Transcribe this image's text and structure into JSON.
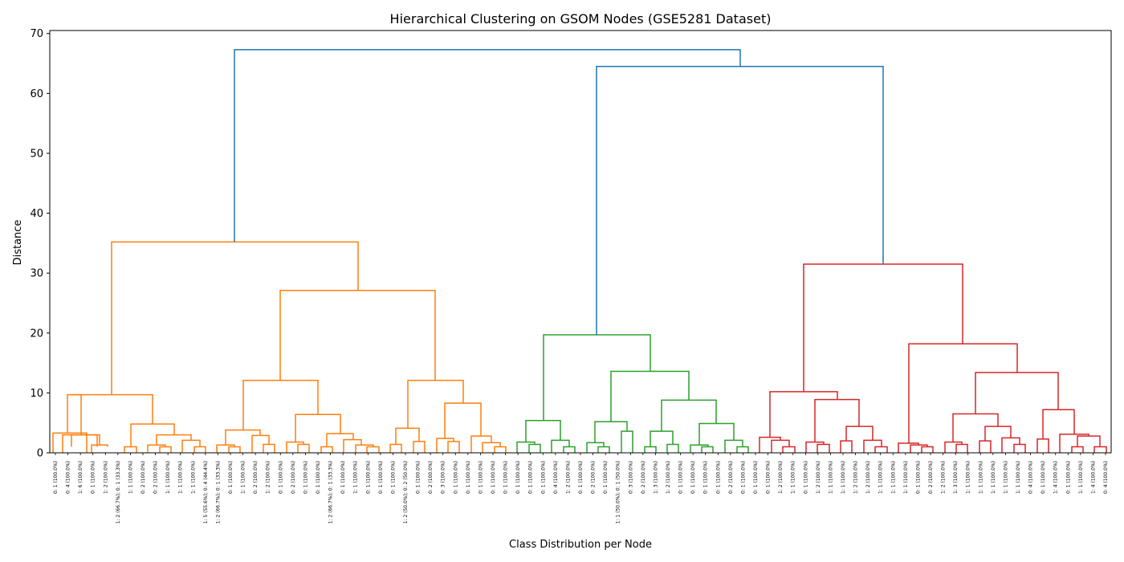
{
  "chart_data": {
    "type": "dendrogram",
    "title": "Hierarchical Clustering on GSOM Nodes (GSE5281 Dataset)",
    "xlabel": "Class Distribution per Node",
    "ylabel": "Distance",
    "ylim": [
      0,
      70.5
    ],
    "yticks": [
      0,
      10,
      20,
      30,
      40,
      50,
      60,
      70
    ],
    "grid": false,
    "leaf_labels": [
      "0: 1 (100.0%)",
      "0: 4 (100.0%)",
      "1: 6 (100.0%)",
      "0: 1 (100.0%)",
      "1: 2 (100.0%)",
      "1: 2 (66.7%); 0: 1 (33.3%)",
      "1: 1 (100.0%)",
      "0: 2 (100.0%)",
      "0: 2 (100.0%)",
      "1: 1 (100.0%)",
      "1: 1 (100.0%)",
      "1: 1 (100.0%)",
      "1: 5 (55.6%); 0: 4 (44.4%)",
      "1: 2 (66.7%); 0: 1 (33.3%)",
      "0: 1 (100.0%)",
      "1: 1 (100.0%)",
      "0: 2 (100.0%)",
      "1: 2 (100.0%)",
      "0: 1 (100.0%)",
      "0: 2 (100.0%)",
      "0: 1 (100.0%)",
      "0: 1 (100.0%)",
      "1: 2 (66.7%); 0: 1 (33.3%)",
      "0: 1 (100.0%)",
      "1: 1 (100.0%)",
      "0: 1 (100.0%)",
      "0: 1 (100.0%)",
      "0: 1 (100.0%)",
      "1: 2 (50.0%); 0: 2 (50.0%)",
      "0: 1 (100.0%)",
      "0: 2 (100.0%)",
      "0: 3 (100.0%)",
      "0: 1 (100.0%)",
      "0: 1 (100.0%)",
      "0: 1 (100.0%)",
      "0: 1 (100.0%)",
      "0: 1 (100.0%)",
      "0: 1 (100.0%)",
      "0: 1 (100.0%)",
      "0: 1 (100.0%)",
      "0: 4 (100.0%)",
      "1: 2 (100.0%)",
      "0: 1 (100.0%)",
      "0: 2 (100.0%)",
      "0: 1 (100.0%)",
      "1: 1 (50.0%); 0: 1 (50.0%)",
      "0: 3 (100.0%)",
      "0: 2 (100.0%)",
      "1: 3 (100.0%)",
      "1: 2 (100.0%)",
      "0: 1 (100.0%)",
      "0: 1 (100.0%)",
      "0: 1 (100.0%)",
      "0: 1 (100.0%)",
      "0: 2 (100.0%)",
      "0: 1 (100.0%)",
      "0: 1 (100.0%)",
      "0: 1 (100.0%)",
      "1: 2 (100.0%)",
      "1: 1 (100.0%)",
      "0: 1 (100.0%)",
      "1: 2 (100.0%)",
      "1: 1 (100.0%)",
      "1: 1 (100.0%)",
      "1: 2 (100.0%)",
      "1: 2 (100.0%)",
      "1: 1 (100.0%)",
      "1: 1 (100.0%)",
      "1: 1 (100.0%)",
      "0: 1 (100.0%)",
      "0: 2 (100.0%)",
      "1: 2 (100.0%)",
      "1: 3 (100.0%)",
      "1: 1 (100.0%)",
      "1: 1 (100.0%)",
      "1: 1 (100.0%)",
      "1: 1 (100.0%)",
      "1: 1 (100.0%)",
      "0: 4 (100.0%)",
      "0: 1 (100.0%)",
      "1: 4 (100.0%)",
      "0: 1 (100.0%)",
      "1: 1 (100.0%)",
      "1: 4 (100.0%)",
      "0: 4 (100.0%)"
    ],
    "colors": {
      "top": "#1f77b4",
      "orange": "#ff7f0e",
      "green": "#2ca02c",
      "red": "#d62728"
    },
    "links": [
      {
        "c": "orange",
        "x": [
          66,
          108
        ],
        "h": [
          0,
          3.3,
          3.3,
          0
        ]
      },
      {
        "c": "orange",
        "x": [
          78,
          121
        ],
        "h": [
          0,
          3.0,
          3.0,
          1.0
        ]
      },
      {
        "c": "orange",
        "x": [
          114,
          134
        ],
        "h": [
          0,
          1.3,
          1.3,
          1.0
        ]
      },
      {
        "c": "orange",
        "x": [
          89,
          124
        ],
        "h": [
          1.0,
          3.0,
          3.0,
          1.3
        ]
      },
      {
        "c": "orange",
        "x": [
          84,
          101
        ],
        "h": [
          3.3,
          9.7,
          9.7,
          3.0
        ]
      },
      {
        "c": "orange",
        "x": [
          155,
          170
        ],
        "h": [
          0,
          1.0,
          1.0,
          0
        ]
      },
      {
        "c": "orange",
        "x": [
          184,
          206
        ],
        "h": [
          0,
          1.3,
          1.3,
          1.0
        ]
      },
      {
        "c": "orange",
        "x": [
          199,
          213
        ],
        "h": [
          0,
          1.0,
          1.0,
          0
        ]
      },
      {
        "c": "orange",
        "x": [
          195,
          238
        ],
        "h": [
          1.3,
          3.0,
          3.0,
          2.1
        ]
      },
      {
        "c": "orange",
        "x": [
          227,
          249
        ],
        "h": [
          0,
          2.1,
          2.1,
          1.0
        ]
      },
      {
        "c": "orange",
        "x": [
          242,
          256
        ],
        "h": [
          0,
          1.0,
          1.0,
          0
        ]
      },
      {
        "c": "orange",
        "x": [
          163,
          217
        ],
        "h": [
          1.0,
          4.8,
          4.8,
          3.0
        ]
      },
      {
        "c": "orange",
        "x": [
          88,
          190
        ],
        "h": [
          9.7,
          9.7,
          9.7,
          4.8
        ]
      },
      {
        "c": "orange",
        "x": [
          270,
          292
        ],
        "h": [
          0,
          1.3,
          1.3,
          1.0
        ]
      },
      {
        "c": "orange",
        "x": [
          285,
          299
        ],
        "h": [
          0,
          1.0,
          1.0,
          0
        ]
      },
      {
        "c": "orange",
        "x": [
          281,
          324
        ],
        "h": [
          1.3,
          3.8,
          3.8,
          2.9
        ]
      },
      {
        "c": "orange",
        "x": [
          314,
          335
        ],
        "h": [
          0,
          2.9,
          2.9,
          1.4
        ]
      },
      {
        "c": "orange",
        "x": [
          328,
          342
        ],
        "h": [
          0,
          1.4,
          1.4,
          0
        ]
      },
      {
        "c": "orange",
        "x": [
          357,
          378
        ],
        "h": [
          0,
          1.8,
          1.8,
          1.4
        ]
      },
      {
        "c": "orange",
        "x": [
          371,
          385
        ],
        "h": [
          0,
          1.4,
          1.4,
          0
        ]
      },
      {
        "c": "orange",
        "x": [
          400,
          414
        ],
        "h": [
          0,
          1.0,
          1.0,
          0
        ]
      },
      {
        "c": "orange",
        "x": [
          428,
          450
        ],
        "h": [
          0,
          2.2,
          2.2,
          1.3
        ]
      },
      {
        "c": "orange",
        "x": [
          443,
          465
        ],
        "h": [
          0,
          1.3,
          1.3,
          1.0
        ]
      },
      {
        "c": "orange",
        "x": [
          457,
          472
        ],
        "h": [
          0,
          1.0,
          1.0,
          0
        ]
      },
      {
        "c": "orange",
        "x": [
          407,
          440
        ],
        "h": [
          1.0,
          3.2,
          3.2,
          2.2
        ]
      },
      {
        "c": "orange",
        "x": [
          368,
          424
        ],
        "h": [
          1.8,
          6.4,
          6.4,
          3.2
        ]
      },
      {
        "c": "orange",
        "x": [
          303,
          396
        ],
        "h": [
          3.8,
          12.1,
          12.1,
          6.4
        ]
      },
      {
        "c": "orange",
        "x": [
          486,
          500
        ],
        "h": [
          0,
          1.4,
          1.4,
          0
        ]
      },
      {
        "c": "orange",
        "x": [
          515,
          529
        ],
        "h": [
          0,
          1.9,
          1.9,
          0
        ]
      },
      {
        "c": "orange",
        "x": [
          493,
          522
        ],
        "h": [
          1.4,
          4.1,
          4.1,
          1.9
        ]
      },
      {
        "c": "orange",
        "x": [
          544,
          565
        ],
        "h": [
          0,
          2.4,
          2.4,
          1.9
        ]
      },
      {
        "c": "orange",
        "x": [
          558,
          572
        ],
        "h": [
          0,
          1.9,
          1.9,
          0
        ]
      },
      {
        "c": "orange",
        "x": [
          587,
          612
        ],
        "h": [
          0,
          2.8,
          2.8,
          1.7
        ]
      },
      {
        "c": "orange",
        "x": [
          601,
          623
        ],
        "h": [
          0,
          1.7,
          1.7,
          1.0
        ]
      },
      {
        "c": "orange",
        "x": [
          616,
          630
        ],
        "h": [
          0,
          1.0,
          1.0,
          0
        ]
      },
      {
        "c": "orange",
        "x": [
          554,
          599
        ],
        "h": [
          2.4,
          8.3,
          8.3,
          2.8
        ]
      },
      {
        "c": "orange",
        "x": [
          508,
          577
        ],
        "h": [
          4.1,
          12.1,
          12.1,
          8.3
        ]
      },
      {
        "c": "orange",
        "x": [
          349,
          542
        ],
        "h": [
          12.1,
          27.1,
          27.1,
          12.1
        ]
      },
      {
        "c": "orange",
        "x": [
          139,
          446
        ],
        "h": [
          9.7,
          35.2,
          35.2,
          27.1
        ]
      },
      {
        "c": "green",
        "x": [
          644,
          666
        ],
        "h": [
          0,
          1.8,
          1.8,
          1.4
        ]
      },
      {
        "c": "green",
        "x": [
          659,
          673
        ],
        "h": [
          0,
          1.4,
          1.4,
          0
        ]
      },
      {
        "c": "green",
        "x": [
          687,
          709
        ],
        "h": [
          0,
          2.1,
          2.1,
          1.0
        ]
      },
      {
        "c": "green",
        "x": [
          702,
          716
        ],
        "h": [
          0,
          1.0,
          1.0,
          0
        ]
      },
      {
        "c": "green",
        "x": [
          655,
          698
        ],
        "h": [
          1.8,
          5.4,
          5.4,
          2.1
        ]
      },
      {
        "c": "green",
        "x": [
          731,
          752
        ],
        "h": [
          0,
          1.7,
          1.7,
          1.0
        ]
      },
      {
        "c": "green",
        "x": [
          745,
          759
        ],
        "h": [
          0,
          1.0,
          1.0,
          0
        ]
      },
      {
        "c": "green",
        "x": [
          774,
          788
        ],
        "h": [
          0,
          3.6,
          3.6,
          0
        ]
      },
      {
        "c": "green",
        "x": [
          741,
          781
        ],
        "h": [
          1.7,
          5.2,
          5.2,
          3.6
        ]
      },
      {
        "c": "green",
        "x": [
          803,
          817
        ],
        "h": [
          0,
          1.0,
          1.0,
          0
        ]
      },
      {
        "c": "green",
        "x": [
          831,
          845
        ],
        "h": [
          0,
          1.4,
          1.4,
          0
        ]
      },
      {
        "c": "green",
        "x": [
          810,
          838
        ],
        "h": [
          1.0,
          3.6,
          3.6,
          1.4
        ]
      },
      {
        "c": "green",
        "x": [
          860,
          882
        ],
        "h": [
          0,
          1.3,
          1.3,
          1.0
        ]
      },
      {
        "c": "green",
        "x": [
          874,
          888
        ],
        "h": [
          0,
          1.0,
          1.0,
          0
        ]
      },
      {
        "c": "green",
        "x": [
          903,
          925
        ],
        "h": [
          0,
          2.1,
          2.1,
          1.0
        ]
      },
      {
        "c": "green",
        "x": [
          918,
          932
        ],
        "h": [
          0,
          1.0,
          1.0,
          0
        ]
      },
      {
        "c": "green",
        "x": [
          871,
          914
        ],
        "h": [
          1.3,
          4.9,
          4.9,
          2.1
        ]
      },
      {
        "c": "green",
        "x": [
          824,
          892
        ],
        "h": [
          3.6,
          8.8,
          8.8,
          4.9
        ]
      },
      {
        "c": "green",
        "x": [
          761,
          858
        ],
        "h": [
          5.2,
          13.6,
          13.6,
          8.8
        ]
      },
      {
        "c": "green",
        "x": [
          677,
          810
        ],
        "h": [
          5.4,
          19.7,
          19.7,
          13.6
        ]
      },
      {
        "c": "red",
        "x": [
          946,
          972
        ],
        "h": [
          0,
          2.6,
          2.6,
          2.1
        ]
      },
      {
        "c": "red",
        "x": [
          961,
          983
        ],
        "h": [
          0,
          2.1,
          2.1,
          1.0
        ]
      },
      {
        "c": "red",
        "x": [
          975,
          990
        ],
        "h": [
          0,
          1.0,
          1.0,
          0
        ]
      },
      {
        "c": "red",
        "x": [
          1004,
          1026
        ],
        "h": [
          0,
          1.8,
          1.8,
          1.4
        ]
      },
      {
        "c": "red",
        "x": [
          1018,
          1033
        ],
        "h": [
          0,
          1.4,
          1.4,
          0
        ]
      },
      {
        "c": "red",
        "x": [
          1047,
          1061
        ],
        "h": [
          0,
          2.0,
          2.0,
          0
        ]
      },
      {
        "c": "red",
        "x": [
          1076,
          1098
        ],
        "h": [
          0,
          2.1,
          2.1,
          1.0
        ]
      },
      {
        "c": "red",
        "x": [
          1090,
          1105
        ],
        "h": [
          0,
          1.0,
          1.0,
          0
        ]
      },
      {
        "c": "red",
        "x": [
          1054,
          1087
        ],
        "h": [
          2.0,
          4.4,
          4.4,
          2.1
        ]
      },
      {
        "c": "red",
        "x": [
          1015,
          1070
        ],
        "h": [
          1.8,
          8.9,
          8.9,
          4.4
        ]
      },
      {
        "c": "red",
        "x": [
          959,
          1043
        ],
        "h": [
          2.6,
          10.2,
          10.2,
          8.9
        ]
      },
      {
        "c": "red",
        "x": [
          1119,
          1144
        ],
        "h": [
          0,
          1.6,
          1.6,
          1.3
        ]
      },
      {
        "c": "red",
        "x": [
          1134,
          1155
        ],
        "h": [
          0,
          1.3,
          1.3,
          1.0
        ]
      },
      {
        "c": "red",
        "x": [
          1148,
          1162
        ],
        "h": [
          0,
          1.0,
          1.0,
          0
        ]
      },
      {
        "c": "red",
        "x": [
          1177,
          1198
        ],
        "h": [
          0,
          1.8,
          1.8,
          1.4
        ]
      },
      {
        "c": "red",
        "x": [
          1191,
          1205
        ],
        "h": [
          0,
          1.4,
          1.4,
          0
        ]
      },
      {
        "c": "red",
        "x": [
          1220,
          1234
        ],
        "h": [
          0,
          2.0,
          2.0,
          0
        ]
      },
      {
        "c": "red",
        "x": [
          1248,
          1270
        ],
        "h": [
          0,
          2.5,
          2.5,
          1.4
        ]
      },
      {
        "c": "red",
        "x": [
          1263,
          1277
        ],
        "h": [
          0,
          1.4,
          1.4,
          0
        ]
      },
      {
        "c": "red",
        "x": [
          1227,
          1259
        ],
        "h": [
          2.0,
          4.4,
          4.4,
          2.5
        ]
      },
      {
        "c": "red",
        "x": [
          1187,
          1243
        ],
        "h": [
          1.8,
          6.5,
          6.5,
          4.4
        ]
      },
      {
        "c": "red",
        "x": [
          1292,
          1306
        ],
        "h": [
          0,
          2.3,
          2.3,
          0
        ]
      },
      {
        "c": "red",
        "x": [
          1335,
          1349
        ],
        "h": [
          0,
          1.0,
          1.0,
          0
        ]
      },
      {
        "c": "red",
        "x": [
          1363,
          1378
        ],
        "h": [
          0,
          1.0,
          1.0,
          0
        ]
      },
      {
        "c": "red",
        "x": [
          1342,
          1370
        ],
        "h": [
          1.0,
          2.8,
          2.8,
          1.0
        ]
      },
      {
        "c": "red",
        "x": [
          1320,
          1356
        ],
        "h": [
          0,
          3.1,
          3.1,
          2.8
        ]
      },
      {
        "c": "red",
        "x": [
          1299,
          1338
        ],
        "h": [
          2.3,
          7.2,
          7.2,
          3.1
        ]
      },
      {
        "c": "red",
        "x": [
          1215,
          1318
        ],
        "h": [
          6.5,
          13.4,
          13.4,
          7.2
        ]
      },
      {
        "c": "red",
        "x": [
          1132,
          1267
        ],
        "h": [
          1.6,
          18.2,
          18.2,
          13.4
        ]
      },
      {
        "c": "red",
        "x": [
          1001,
          1199
        ],
        "h": [
          10.2,
          31.5,
          31.5,
          18.2
        ]
      },
      {
        "c": "top",
        "x": [
          743,
          1100
        ],
        "h": [
          19.7,
          64.5,
          64.5,
          31.5
        ]
      },
      {
        "c": "top",
        "x": [
          292,
          922
        ],
        "h": [
          35.2,
          67.3,
          67.3,
          64.5
        ]
      }
    ]
  }
}
